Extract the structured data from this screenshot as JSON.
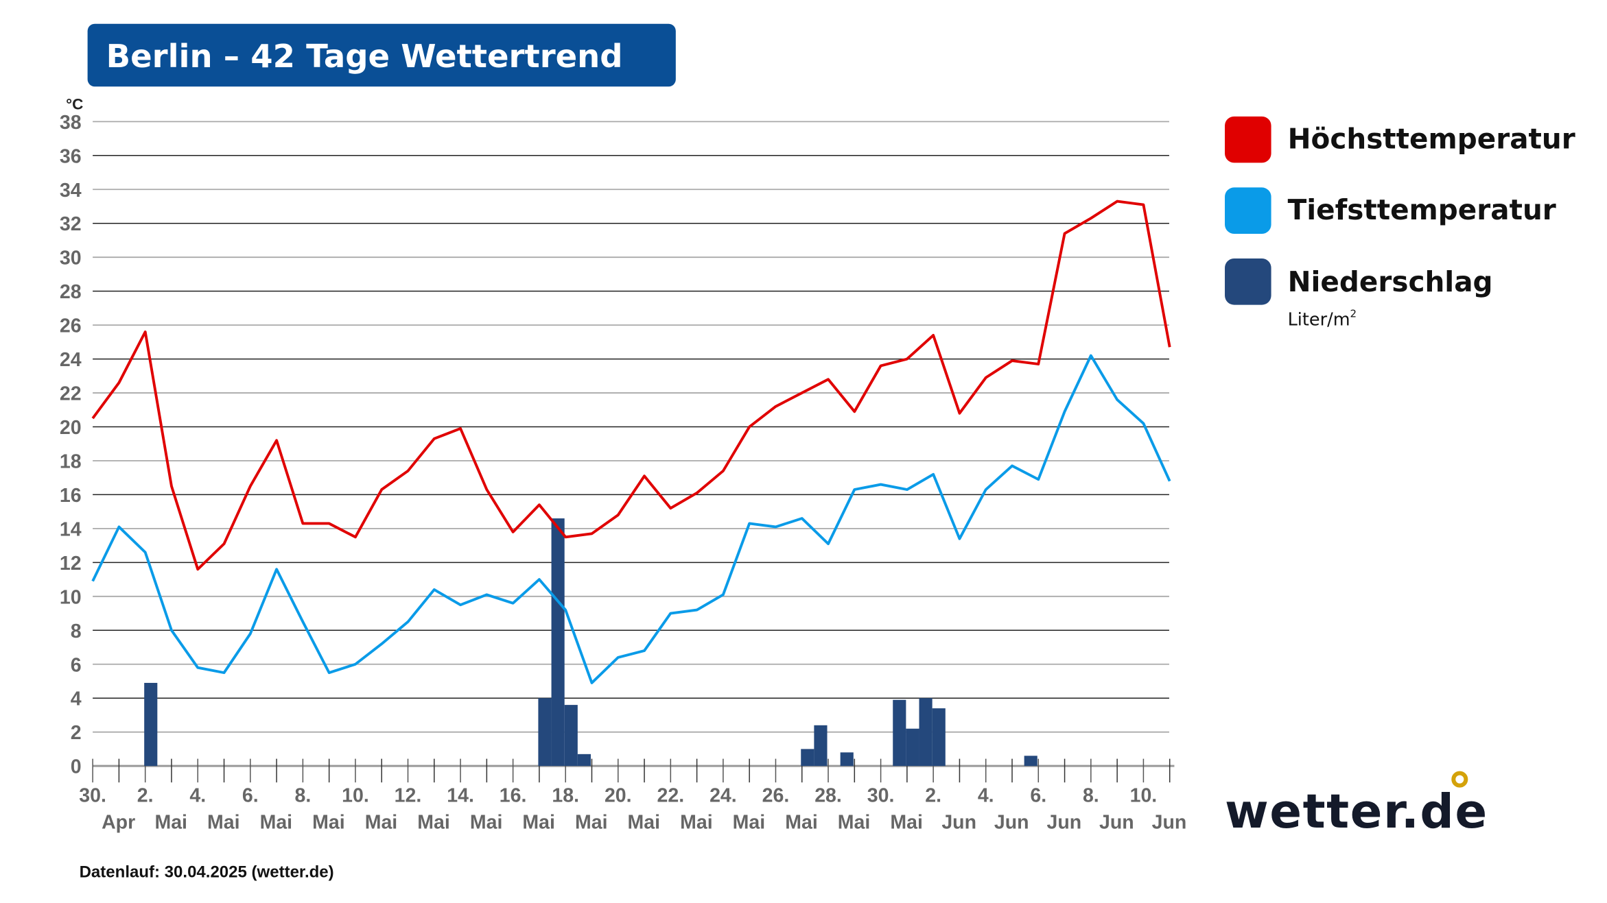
{
  "title": "Berlin – 42 Tage Wettertrend",
  "footer": "Datenlauf: 30.04.2025 (wetter.de)",
  "logo": "wetter.de",
  "colors": {
    "title_bg": "#0a4f96",
    "max": "#e00000",
    "min": "#0a9be8",
    "precip": "#24487c",
    "logo_dot": "#d4a20a"
  },
  "chart_data": {
    "type": "line",
    "ylabel": "°C",
    "ylim": [
      0,
      38
    ],
    "yticks": [
      "0",
      "2",
      "4",
      "6",
      "8",
      "10",
      "12",
      "14",
      "16",
      "18",
      "20",
      "22",
      "24",
      "26",
      "28",
      "30",
      "32",
      "34",
      "36",
      "38"
    ],
    "grid": true,
    "legend_position": "right",
    "x_days": [
      "30.04",
      "01.05",
      "02.05",
      "03.05",
      "04.05",
      "05.05",
      "06.05",
      "07.05",
      "08.05",
      "09.05",
      "10.05",
      "11.05",
      "12.05",
      "13.05",
      "14.05",
      "15.05",
      "16.05",
      "17.05",
      "18.05",
      "19.05",
      "20.05",
      "21.05",
      "22.05",
      "23.05",
      "24.05",
      "25.05",
      "26.05",
      "27.05",
      "28.05",
      "29.05",
      "30.05",
      "31.05",
      "01.06",
      "02.06",
      "03.06",
      "04.06",
      "05.06",
      "06.06",
      "07.06",
      "08.06",
      "09.06",
      "10.06"
    ],
    "xtick_labels": [
      {
        "day": "30.",
        "month": "Apr"
      },
      {
        "day": "2.",
        "month": "Mai"
      },
      {
        "day": "4.",
        "month": "Mai"
      },
      {
        "day": "6.",
        "month": "Mai"
      },
      {
        "day": "8.",
        "month": "Mai"
      },
      {
        "day": "10.",
        "month": "Mai"
      },
      {
        "day": "12.",
        "month": "Mai"
      },
      {
        "day": "14.",
        "month": "Mai"
      },
      {
        "day": "16.",
        "month": "Mai"
      },
      {
        "day": "18.",
        "month": "Mai"
      },
      {
        "day": "20.",
        "month": "Mai"
      },
      {
        "day": "22.",
        "month": "Mai"
      },
      {
        "day": "24.",
        "month": "Mai"
      },
      {
        "day": "26.",
        "month": "Mai"
      },
      {
        "day": "28.",
        "month": "Mai"
      },
      {
        "day": "30.",
        "month": "Mai"
      },
      {
        "day": "2.",
        "month": "Jun"
      },
      {
        "day": "4.",
        "month": "Jun"
      },
      {
        "day": "6.",
        "month": "Jun"
      },
      {
        "day": "8.",
        "month": "Jun"
      },
      {
        "day": "10.",
        "month": "Jun"
      }
    ],
    "series": [
      {
        "name": "Höchsttemperatur",
        "type": "line",
        "values": [
          20.5,
          22.6,
          25.6,
          16.5,
          11.6,
          13.1,
          16.5,
          19.2,
          14.3,
          14.3,
          13.5,
          16.3,
          17.4,
          19.3,
          19.9,
          16.3,
          13.8,
          15.4,
          13.5,
          13.7,
          14.8,
          17.1,
          15.2,
          16.1,
          17.4,
          20.0,
          21.2,
          22.0,
          22.8,
          20.9,
          23.6,
          24.0,
          25.4,
          20.8,
          22.9,
          23.9,
          23.7,
          31.4,
          32.3,
          33.3,
          33.1,
          24.7
        ]
      },
      {
        "name": "Tiefsttemperatur",
        "type": "line",
        "values": [
          10.9,
          14.1,
          12.6,
          8.0,
          5.8,
          5.5,
          7.8,
          11.6,
          8.5,
          5.5,
          6.0,
          7.2,
          8.5,
          10.4,
          9.5,
          10.1,
          9.6,
          11.0,
          9.2,
          4.9,
          6.4,
          6.8,
          9.0,
          9.2,
          10.1,
          14.3,
          14.1,
          14.6,
          13.1,
          16.3,
          16.6,
          16.3,
          17.2,
          13.4,
          16.3,
          17.7,
          16.9,
          20.9,
          24.2,
          21.6,
          20.2,
          16.8
        ]
      },
      {
        "name": "Niederschlag",
        "unit": "Liter/m²",
        "type": "bar",
        "points": [
          {
            "t": "2025-05-02 00:00",
            "v": 4.9
          },
          {
            "t": "2025-05-17 00:00",
            "v": 4.0
          },
          {
            "t": "2025-05-17 12:00",
            "v": 14.6
          },
          {
            "t": "2025-05-18 00:00",
            "v": 3.6
          },
          {
            "t": "2025-05-18 12:00",
            "v": 0.7
          },
          {
            "t": "2025-05-27 00:00",
            "v": 1.0
          },
          {
            "t": "2025-05-27 12:00",
            "v": 2.4
          },
          {
            "t": "2025-05-28 12:00",
            "v": 0.8
          },
          {
            "t": "2025-05-30 12:00",
            "v": 3.9
          },
          {
            "t": "2025-05-31 00:00",
            "v": 2.2
          },
          {
            "t": "2025-05-31 12:00",
            "v": 4.0
          },
          {
            "t": "2025-06-01 00:00",
            "v": 3.4
          },
          {
            "t": "2025-06-04 12:00",
            "v": 0.6
          }
        ]
      }
    ],
    "legend": {
      "max": "Höchsttemperatur",
      "min": "Tiefsttemperatur",
      "precip": "Niederschlag",
      "precip_unit": "Liter/m",
      "precip_unit_sup": "2"
    }
  }
}
